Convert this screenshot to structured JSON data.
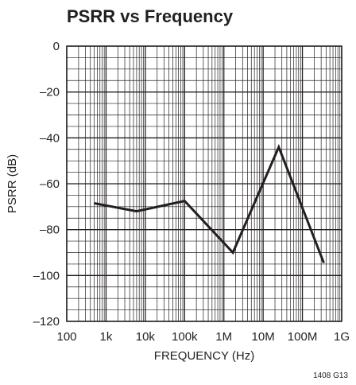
{
  "chart_data": {
    "type": "line",
    "title": "PSRR vs Frequency",
    "xlabel": "FREQUENCY (Hz)",
    "ylabel": "PSRR (dB)",
    "x_scale": "log",
    "xlim": [
      100,
      1000000000
    ],
    "ylim": [
      -120,
      0
    ],
    "x_ticks": [
      100,
      1000,
      10000,
      100000,
      1000000,
      10000000,
      100000000,
      1000000000
    ],
    "x_tick_labels": [
      "100",
      "1k",
      "10k",
      "100k",
      "1M",
      "10M",
      "100M",
      "1G"
    ],
    "y_ticks": [
      0,
      -20,
      -40,
      -60,
      -80,
      -100,
      -120
    ],
    "y_tick_labels": [
      "0",
      "–20",
      "–40",
      "–60",
      "–80",
      "–100",
      "–120"
    ],
    "grid": true,
    "series": [
      {
        "x": [
          500,
          6000,
          100000,
          1700000,
          25000000,
          350000000
        ],
        "y": [
          -68.5,
          -72,
          -67.5,
          -90,
          -44,
          -94.5
        ]
      }
    ],
    "figure_id": "1408 G13"
  }
}
